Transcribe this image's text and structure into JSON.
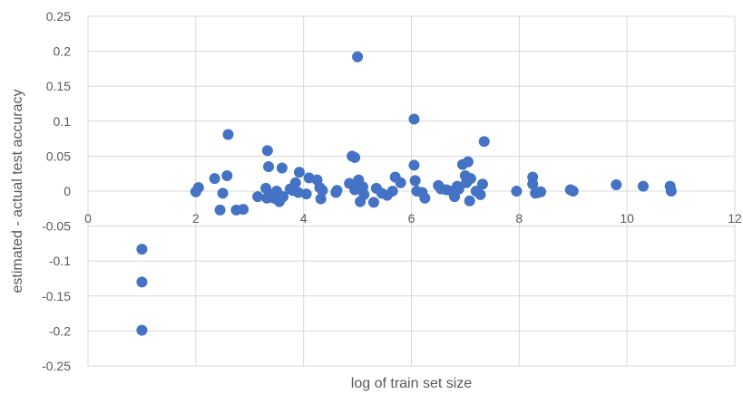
{
  "chart_data": {
    "type": "scatter",
    "title": "",
    "xlabel": "log of train set size",
    "ylabel": "estimated - actual test accuracy",
    "xlim": [
      0,
      12
    ],
    "ylim": [
      -0.25,
      0.25
    ],
    "x_ticks": [
      0,
      2,
      4,
      6,
      8,
      10,
      12
    ],
    "y_ticks": [
      0.25,
      0.2,
      0.15,
      0.1,
      0.05,
      0,
      -0.05,
      -0.1,
      -0.15,
      -0.2,
      -0.25
    ],
    "x_tick_labels": [
      "0",
      "2",
      "4",
      "6",
      "8",
      "10",
      "12"
    ],
    "y_tick_labels": [
      "0.25",
      "0.2",
      "0.15",
      "0.1",
      "0.05",
      "0",
      "-0.05",
      "-0.1",
      "-0.15",
      "-0.2",
      "-0.25"
    ],
    "grid": true,
    "legend": "none",
    "colors": {
      "marker": "#4472c4",
      "grid": "#d9d9d9",
      "text": "#595959"
    },
    "series": [
      {
        "points": [
          [
            1.0,
            -0.083
          ],
          [
            1.0,
            -0.13
          ],
          [
            1.0,
            -0.199
          ],
          [
            2.0,
            -0.001
          ],
          [
            2.05,
            0.005
          ],
          [
            2.35,
            0.018
          ],
          [
            2.45,
            -0.027
          ],
          [
            2.5,
            -0.003
          ],
          [
            2.58,
            0.022
          ],
          [
            2.6,
            0.081
          ],
          [
            2.75,
            -0.027
          ],
          [
            2.88,
            -0.026
          ],
          [
            3.15,
            -0.008
          ],
          [
            3.3,
            0.004
          ],
          [
            3.32,
            -0.01
          ],
          [
            3.33,
            0.058
          ],
          [
            3.35,
            0.035
          ],
          [
            3.4,
            -0.005
          ],
          [
            3.45,
            -0.01
          ],
          [
            3.5,
            0.0
          ],
          [
            3.55,
            -0.015
          ],
          [
            3.6,
            0.033
          ],
          [
            3.62,
            -0.008
          ],
          [
            3.75,
            0.003
          ],
          [
            3.8,
            0.001
          ],
          [
            3.85,
            0.012
          ],
          [
            3.9,
            -0.002
          ],
          [
            3.92,
            0.027
          ],
          [
            4.05,
            -0.004
          ],
          [
            4.1,
            0.019
          ],
          [
            4.25,
            0.016
          ],
          [
            4.3,
            0.005
          ],
          [
            4.32,
            -0.011
          ],
          [
            4.35,
            0.001
          ],
          [
            4.6,
            -0.002
          ],
          [
            4.62,
            0.001
          ],
          [
            4.85,
            0.011
          ],
          [
            4.9,
            0.05
          ],
          [
            4.95,
            0.048
          ],
          [
            4.95,
            0.002
          ],
          [
            5.0,
            0.192
          ],
          [
            5.02,
            0.016
          ],
          [
            5.05,
            -0.015
          ],
          [
            5.1,
            0.006
          ],
          [
            5.12,
            -0.005
          ],
          [
            5.3,
            -0.016
          ],
          [
            5.35,
            0.004
          ],
          [
            5.45,
            -0.003
          ],
          [
            5.55,
            -0.006
          ],
          [
            5.65,
            0.0
          ],
          [
            5.7,
            0.02
          ],
          [
            5.8,
            0.012
          ],
          [
            6.05,
            0.103
          ],
          [
            6.05,
            0.037
          ],
          [
            6.07,
            0.015
          ],
          [
            6.1,
            0.0
          ],
          [
            6.2,
            -0.002
          ],
          [
            6.25,
            -0.01
          ],
          [
            6.5,
            0.008
          ],
          [
            6.55,
            0.003
          ],
          [
            6.65,
            0.002
          ],
          [
            6.75,
            0.0
          ],
          [
            6.8,
            -0.008
          ],
          [
            6.85,
            0.007
          ],
          [
            6.88,
            0.003
          ],
          [
            6.95,
            0.038
          ],
          [
            7.0,
            0.022
          ],
          [
            7.02,
            0.012
          ],
          [
            7.05,
            0.042
          ],
          [
            7.08,
            -0.014
          ],
          [
            7.1,
            0.018
          ],
          [
            7.2,
            0.0
          ],
          [
            7.28,
            -0.005
          ],
          [
            7.32,
            0.01
          ],
          [
            7.35,
            0.071
          ],
          [
            7.95,
            0.0
          ],
          [
            8.25,
            0.02
          ],
          [
            8.25,
            0.01
          ],
          [
            8.3,
            -0.003
          ],
          [
            8.35,
            -0.002
          ],
          [
            8.4,
            -0.001
          ],
          [
            8.95,
            0.002
          ],
          [
            9.0,
            0.0
          ],
          [
            9.8,
            0.009
          ],
          [
            10.3,
            0.007
          ],
          [
            10.8,
            0.007
          ],
          [
            10.82,
            0.0
          ]
        ]
      }
    ]
  }
}
